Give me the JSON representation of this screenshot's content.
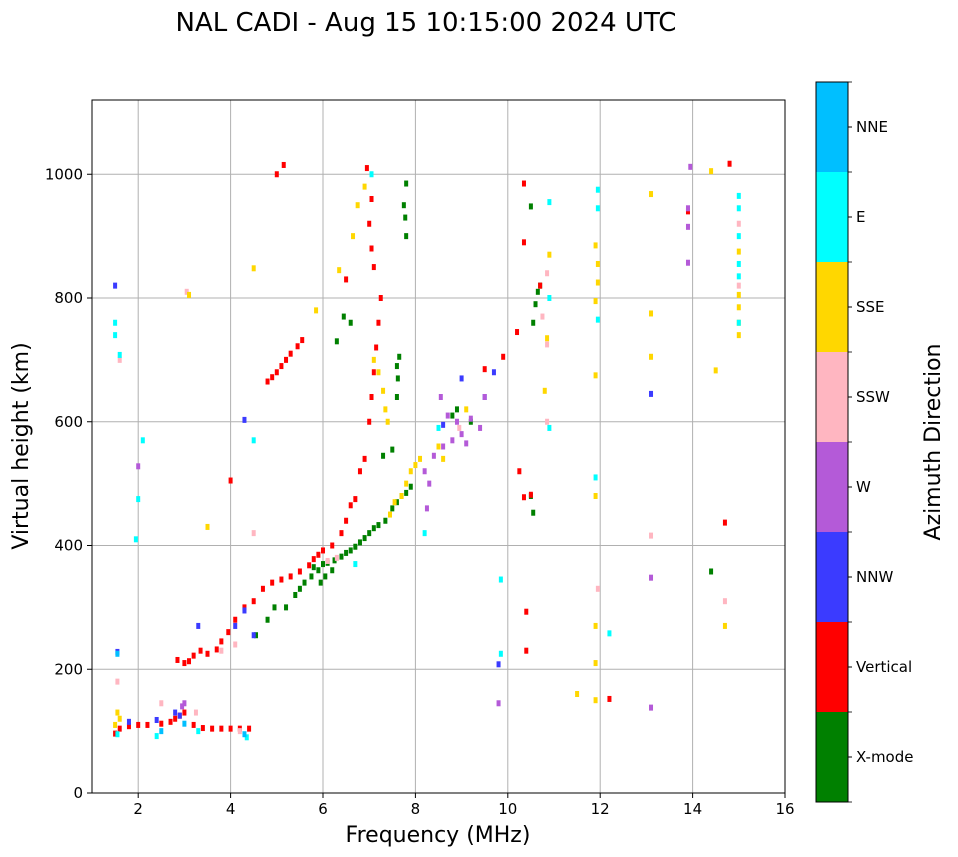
{
  "chart_data": {
    "type": "scatter",
    "title": "NAL CADI - Aug 15 10:15:00 2024 UTC",
    "xlabel": "Frequency (MHz)",
    "ylabel": "Virtual height (km)",
    "xlim": [
      1,
      16
    ],
    "ylim": [
      0,
      1120
    ],
    "xticks": [
      2,
      4,
      6,
      8,
      10,
      12,
      14,
      16
    ],
    "yticks": [
      0,
      200,
      400,
      600,
      800,
      1000
    ],
    "grid": true,
    "colorbar": {
      "label": "Azimuth Direction",
      "categories": [
        "X-mode",
        "Vertical",
        "NNW",
        "W",
        "SSW",
        "SSE",
        "E",
        "NNE"
      ],
      "colors": [
        "#008000",
        "#ff0000",
        "#3b3bff",
        "#b45ad8",
        "#ffb6c1",
        "#ffd700",
        "#00ffff",
        "#00bfff"
      ]
    },
    "series": [
      {
        "name": "X-mode",
        "color": "#008000",
        "points": [
          [
            4.55,
            255
          ],
          [
            4.8,
            280
          ],
          [
            4.95,
            300
          ],
          [
            5.2,
            300
          ],
          [
            5.4,
            320
          ],
          [
            5.6,
            340
          ],
          [
            5.75,
            350
          ],
          [
            5.8,
            365
          ],
          [
            5.9,
            360
          ],
          [
            6.0,
            370
          ],
          [
            6.1,
            372
          ],
          [
            6.25,
            376
          ],
          [
            6.4,
            382
          ],
          [
            6.5,
            388
          ],
          [
            6.6,
            392
          ],
          [
            6.7,
            398
          ],
          [
            6.8,
            405
          ],
          [
            6.9,
            412
          ],
          [
            7.0,
            420
          ],
          [
            7.1,
            428
          ],
          [
            7.2,
            433
          ],
          [
            7.35,
            440
          ],
          [
            7.5,
            460
          ],
          [
            7.6,
            470
          ],
          [
            7.7,
            480
          ],
          [
            7.8,
            485
          ],
          [
            7.9,
            495
          ],
          [
            6.6,
            760
          ],
          [
            6.45,
            770
          ],
          [
            6.3,
            730
          ],
          [
            7.6,
            690
          ],
          [
            7.62,
            670
          ],
          [
            7.6,
            640
          ],
          [
            7.65,
            705
          ],
          [
            7.8,
            985
          ],
          [
            7.75,
            950
          ],
          [
            7.8,
            900
          ],
          [
            7.78,
            930
          ],
          [
            8.8,
            610
          ],
          [
            8.9,
            620
          ],
          [
            9.2,
            600
          ],
          [
            10.55,
            760
          ],
          [
            10.6,
            790
          ],
          [
            10.65,
            810
          ],
          [
            10.7,
            820
          ],
          [
            10.5,
            948
          ],
          [
            10.55,
            453
          ],
          [
            10.5,
            480
          ],
          [
            14.4,
            358
          ],
          [
            7.3,
            545
          ],
          [
            7.5,
            555
          ],
          [
            6.2,
            360
          ],
          [
            6.05,
            350
          ],
          [
            5.95,
            340
          ],
          [
            5.5,
            330
          ]
        ]
      },
      {
        "name": "Vertical",
        "color": "#ff0000",
        "points": [
          [
            1.5,
            96
          ],
          [
            1.6,
            104
          ],
          [
            1.8,
            108
          ],
          [
            2.0,
            110
          ],
          [
            2.2,
            110
          ],
          [
            2.5,
            112
          ],
          [
            2.7,
            115
          ],
          [
            2.8,
            120
          ],
          [
            2.9,
            125
          ],
          [
            3.0,
            130
          ],
          [
            3.2,
            110
          ],
          [
            3.4,
            105
          ],
          [
            3.6,
            104
          ],
          [
            3.8,
            104
          ],
          [
            4.0,
            104
          ],
          [
            4.2,
            104
          ],
          [
            4.4,
            104
          ],
          [
            2.85,
            215
          ],
          [
            3.0,
            210
          ],
          [
            3.1,
            213
          ],
          [
            3.2,
            222
          ],
          [
            3.35,
            230
          ],
          [
            3.5,
            225
          ],
          [
            3.7,
            232
          ],
          [
            3.8,
            245
          ],
          [
            3.95,
            260
          ],
          [
            4.1,
            280
          ],
          [
            4.3,
            300
          ],
          [
            4.5,
            310
          ],
          [
            4.7,
            330
          ],
          [
            4.9,
            340
          ],
          [
            5.1,
            345
          ],
          [
            5.3,
            350
          ],
          [
            5.5,
            358
          ],
          [
            5.7,
            368
          ],
          [
            5.8,
            378
          ],
          [
            5.9,
            385
          ],
          [
            6.0,
            392
          ],
          [
            6.2,
            400
          ],
          [
            6.4,
            420
          ],
          [
            6.5,
            440
          ],
          [
            6.6,
            465
          ],
          [
            6.7,
            475
          ],
          [
            6.8,
            520
          ],
          [
            6.9,
            540
          ],
          [
            7.0,
            600
          ],
          [
            7.05,
            640
          ],
          [
            7.1,
            680
          ],
          [
            7.15,
            720
          ],
          [
            7.2,
            760
          ],
          [
            7.25,
            800
          ],
          [
            7.1,
            850
          ],
          [
            7.05,
            880
          ],
          [
            7.0,
            920
          ],
          [
            7.05,
            960
          ],
          [
            6.95,
            1010
          ],
          [
            4.8,
            665
          ],
          [
            4.9,
            672
          ],
          [
            5.0,
            680
          ],
          [
            5.1,
            690
          ],
          [
            5.2,
            700
          ],
          [
            5.3,
            710
          ],
          [
            5.45,
            722
          ],
          [
            5.55,
            732
          ],
          [
            4.0,
            505
          ],
          [
            5.15,
            1015
          ],
          [
            5.0,
            1000
          ],
          [
            6.5,
            830
          ],
          [
            10.35,
            985
          ],
          [
            10.2,
            745
          ],
          [
            10.35,
            890
          ],
          [
            10.7,
            820
          ],
          [
            10.35,
            478
          ],
          [
            10.4,
            293
          ],
          [
            10.4,
            230
          ],
          [
            10.5,
            482
          ],
          [
            12.2,
            152
          ],
          [
            14.8,
            1017
          ],
          [
            14.7,
            437
          ],
          [
            13.9,
            940
          ],
          [
            9.5,
            685
          ],
          [
            9.9,
            705
          ],
          [
            10.25,
            520
          ]
        ]
      },
      {
        "name": "NNW",
        "color": "#3b3bff",
        "points": [
          [
            1.5,
            820
          ],
          [
            1.55,
            228
          ],
          [
            1.8,
            115
          ],
          [
            2.4,
            118
          ],
          [
            2.8,
            130
          ],
          [
            2.9,
            125
          ],
          [
            3.3,
            270
          ],
          [
            4.1,
            270
          ],
          [
            4.3,
            295
          ],
          [
            9.8,
            208
          ],
          [
            13.1,
            645
          ],
          [
            9.5,
            640
          ],
          [
            9.0,
            670
          ],
          [
            9.7,
            680
          ],
          [
            8.6,
            595
          ],
          [
            4.5,
            255
          ],
          [
            4.3,
            603
          ]
        ]
      },
      {
        "name": "W",
        "color": "#b45ad8",
        "points": [
          [
            8.2,
            520
          ],
          [
            8.4,
            545
          ],
          [
            8.6,
            560
          ],
          [
            8.8,
            570
          ],
          [
            9.0,
            580
          ],
          [
            9.1,
            565
          ],
          [
            9.2,
            605
          ],
          [
            9.4,
            590
          ],
          [
            9.5,
            640
          ],
          [
            8.9,
            600
          ],
          [
            8.7,
            610
          ],
          [
            8.55,
            640
          ],
          [
            8.3,
            500
          ],
          [
            8.25,
            460
          ],
          [
            9.8,
            145
          ],
          [
            13.1,
            138
          ],
          [
            13.1,
            348
          ],
          [
            13.9,
            945
          ],
          [
            13.9,
            915
          ],
          [
            13.9,
            857
          ],
          [
            13.95,
            1012
          ],
          [
            2.0,
            528
          ],
          [
            2.95,
            140
          ],
          [
            3.0,
            145
          ]
        ]
      },
      {
        "name": "SSW",
        "color": "#ffb6c1",
        "points": [
          [
            1.55,
            180
          ],
          [
            1.6,
            700
          ],
          [
            2.5,
            145
          ],
          [
            3.05,
            810
          ],
          [
            3.25,
            130
          ],
          [
            4.2,
            100
          ],
          [
            4.5,
            420
          ],
          [
            10.85,
            840
          ],
          [
            10.85,
            600
          ],
          [
            10.85,
            725
          ],
          [
            10.75,
            770
          ],
          [
            13.1,
            416
          ],
          [
            14.7,
            310
          ],
          [
            15.0,
            920
          ],
          [
            15.0,
            820
          ],
          [
            11.95,
            330
          ],
          [
            8.95,
            590
          ],
          [
            4.1,
            240
          ],
          [
            3.8,
            230
          ],
          [
            6.1,
            375
          ],
          [
            6.3,
            380
          ]
        ]
      },
      {
        "name": "SSE",
        "color": "#ffd700",
        "points": [
          [
            1.5,
            110
          ],
          [
            1.55,
            130
          ],
          [
            1.6,
            120
          ],
          [
            3.1,
            805
          ],
          [
            3.5,
            430
          ],
          [
            4.5,
            848
          ],
          [
            5.85,
            780
          ],
          [
            6.35,
            845
          ],
          [
            6.65,
            900
          ],
          [
            6.75,
            950
          ],
          [
            6.9,
            980
          ],
          [
            7.1,
            700
          ],
          [
            7.2,
            680
          ],
          [
            7.3,
            650
          ],
          [
            7.35,
            620
          ],
          [
            7.4,
            600
          ],
          [
            7.45,
            450
          ],
          [
            7.55,
            470
          ],
          [
            7.7,
            480
          ],
          [
            7.8,
            500
          ],
          [
            7.9,
            520
          ],
          [
            8.0,
            530
          ],
          [
            8.1,
            540
          ],
          [
            8.6,
            540
          ],
          [
            8.5,
            560
          ],
          [
            9.1,
            620
          ],
          [
            10.8,
            650
          ],
          [
            10.85,
            735
          ],
          [
            10.9,
            870
          ],
          [
            11.5,
            160
          ],
          [
            11.9,
            150
          ],
          [
            11.9,
            210
          ],
          [
            11.9,
            270
          ],
          [
            11.9,
            480
          ],
          [
            11.9,
            675
          ],
          [
            11.9,
            795
          ],
          [
            11.95,
            825
          ],
          [
            11.9,
            885
          ],
          [
            11.95,
            855
          ],
          [
            13.1,
            705
          ],
          [
            13.1,
            775
          ],
          [
            13.1,
            968
          ],
          [
            14.4,
            1005
          ],
          [
            14.7,
            270
          ],
          [
            14.5,
            683
          ],
          [
            15.0,
            740
          ],
          [
            15.0,
            760
          ],
          [
            15.0,
            785
          ],
          [
            15.0,
            805
          ],
          [
            15.0,
            875
          ]
        ]
      },
      {
        "name": "E",
        "color": "#00ffff",
        "points": [
          [
            1.5,
            740
          ],
          [
            1.5,
            760
          ],
          [
            1.55,
            95
          ],
          [
            1.6,
            708
          ],
          [
            1.95,
            410
          ],
          [
            2.0,
            475
          ],
          [
            2.1,
            570
          ],
          [
            2.4,
            92
          ],
          [
            3.3,
            100
          ],
          [
            4.35,
            90
          ],
          [
            4.5,
            570
          ],
          [
            6.7,
            370
          ],
          [
            7.05,
            1000
          ],
          [
            8.2,
            420
          ],
          [
            8.5,
            590
          ],
          [
            9.85,
            345
          ],
          [
            9.85,
            225
          ],
          [
            10.9,
            590
          ],
          [
            10.9,
            800
          ],
          [
            10.9,
            955
          ],
          [
            11.9,
            510
          ],
          [
            11.95,
            765
          ],
          [
            11.95,
            945
          ],
          [
            11.95,
            975
          ],
          [
            12.2,
            258
          ],
          [
            15.0,
            965
          ],
          [
            15.0,
            945
          ],
          [
            15.0,
            900
          ],
          [
            15.0,
            855
          ],
          [
            15.0,
            835
          ],
          [
            15.0,
            760
          ]
        ]
      },
      {
        "name": "NNE",
        "color": "#00bfff",
        "points": [
          [
            1.55,
            225
          ],
          [
            2.5,
            100
          ],
          [
            3.0,
            112
          ],
          [
            4.3,
            95
          ]
        ]
      }
    ]
  }
}
